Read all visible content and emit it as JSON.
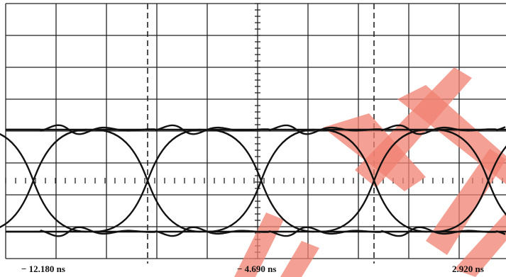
{
  "axis_labels": [
    "− 12.180 ns",
    "− 4.690 ns",
    "2.920 ns"
  ]
}
